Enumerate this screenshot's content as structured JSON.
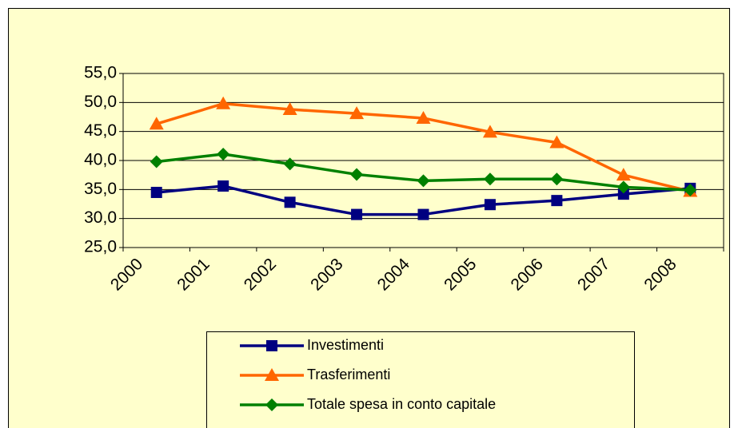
{
  "chart_data": {
    "type": "line",
    "categories": [
      "2000",
      "2001",
      "2002",
      "2003",
      "2004",
      "2005",
      "2006",
      "2007",
      "2008"
    ],
    "series": [
      {
        "name": "Investimenti",
        "color": "#000080",
        "marker": "square",
        "values": [
          34.5,
          35.6,
          32.8,
          30.7,
          30.7,
          32.4,
          33.1,
          34.2,
          35.2
        ]
      },
      {
        "name": "Trasferimenti",
        "color": "#ff6600",
        "marker": "triangle",
        "values": [
          46.3,
          49.8,
          48.8,
          48.1,
          47.3,
          44.9,
          43.1,
          37.5,
          34.7
        ]
      },
      {
        "name": "Totale spesa in conto capitale",
        "color": "#008000",
        "marker": "diamond",
        "values": [
          39.8,
          41.1,
          39.4,
          37.6,
          36.5,
          36.8,
          36.8,
          35.4,
          34.9
        ]
      }
    ],
    "ylim": [
      25,
      55
    ],
    "yticks": [
      {
        "value": 25,
        "label": "25,0"
      },
      {
        "value": 30,
        "label": "30,0"
      },
      {
        "value": 35,
        "label": "35,0"
      },
      {
        "value": 40,
        "label": "40,0"
      },
      {
        "value": 45,
        "label": "45,0"
      },
      {
        "value": 50,
        "label": "50,0"
      },
      {
        "value": 55,
        "label": "55,0"
      }
    ],
    "grid": true,
    "legend": "bottom"
  }
}
